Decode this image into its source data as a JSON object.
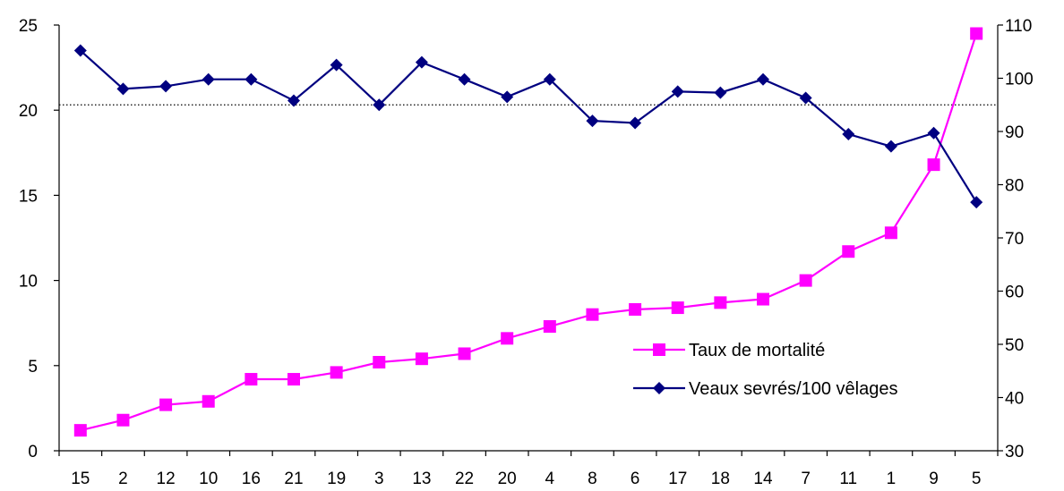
{
  "chart_data": {
    "type": "line",
    "categories": [
      "15",
      "2",
      "12",
      "10",
      "16",
      "21",
      "19",
      "3",
      "13",
      "22",
      "20",
      "4",
      "8",
      "6",
      "17",
      "18",
      "14",
      "7",
      "11",
      "1",
      "9",
      "5"
    ],
    "y_left": {
      "min": 0,
      "max": 25,
      "ticks": [
        "0",
        "5",
        "10",
        "15",
        "20",
        "25"
      ]
    },
    "y_right": {
      "min": 30,
      "max": 110,
      "ticks": [
        "30",
        "40",
        "50",
        "60",
        "70",
        "80",
        "90",
        "100",
        "110"
      ]
    },
    "reference_line": {
      "axis": "right",
      "value": 95
    },
    "series": [
      {
        "name": "Taux de mortalité",
        "axis": "left",
        "color": "#ff00ff",
        "marker": "square",
        "values": [
          1.2,
          1.8,
          2.7,
          2.9,
          4.2,
          4.2,
          4.6,
          5.2,
          5.4,
          5.7,
          6.6,
          7.3,
          8.0,
          8.3,
          8.4,
          8.7,
          8.9,
          10.0,
          11.7,
          12.8,
          16.8,
          24.5
        ]
      },
      {
        "name": "Veaux sevrés/100 vêlages",
        "axis": "right",
        "color": "#000080",
        "marker": "diamond",
        "values": [
          105.2,
          98.0,
          98.5,
          99.8,
          99.8,
          95.8,
          102.5,
          95.0,
          103.0,
          99.8,
          96.5,
          99.8,
          92.0,
          91.6,
          97.5,
          97.3,
          99.8,
          96.3,
          89.5,
          87.2,
          89.7,
          76.7
        ]
      }
    ],
    "legend_position": "lower-right",
    "grid": false
  }
}
